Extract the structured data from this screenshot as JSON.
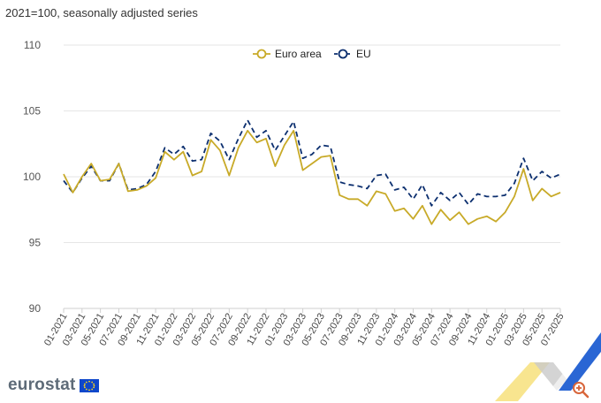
{
  "subtitle": "2021=100, seasonally adjusted series",
  "brand": {
    "logo_text": "eurostat"
  },
  "colors": {
    "euro_area": "#c8aa28",
    "eu": "#0c2f6f",
    "grid": "#e6e6e6"
  },
  "chart_data": {
    "type": "line",
    "title": "",
    "subtitle": "2021=100, seasonally adjusted series",
    "xlabel": "",
    "ylabel": "",
    "ylim": [
      90,
      110
    ],
    "y_ticks": [
      90,
      95,
      100,
      105,
      110
    ],
    "grid": true,
    "legend_position": "top-center",
    "x_tick_labels": [
      "01-2021",
      "03-2021",
      "05-2021",
      "07-2021",
      "09-2021",
      "11-2021",
      "01-2022",
      "03-2022",
      "05-2022",
      "07-2022",
      "09-2022",
      "11-2022",
      "01-2023",
      "03-2023",
      "05-2023",
      "07-2023",
      "09-2023",
      "11-2023",
      "01-2024",
      "03-2024",
      "05-2024",
      "07-2024",
      "09-2024",
      "11-2024",
      "01-2025",
      "03-2025",
      "05-2025",
      "07-2025"
    ],
    "series": [
      {
        "name": "Euro area",
        "style": "solid",
        "values": [
          100.2,
          98.8,
          100.0,
          101.0,
          99.7,
          99.8,
          101.0,
          98.9,
          99.0,
          99.3,
          99.9,
          101.9,
          101.3,
          101.9,
          100.1,
          100.4,
          102.8,
          102.0,
          100.1,
          102.2,
          103.5,
          102.6,
          102.9,
          100.8,
          102.4,
          103.5,
          100.5,
          101.0,
          101.5,
          101.6,
          98.6,
          98.3,
          98.3,
          97.8,
          98.9,
          98.7,
          97.4,
          97.6,
          96.8,
          97.8,
          96.4,
          97.5,
          96.7,
          97.3,
          96.4,
          96.8,
          97.0,
          96.6,
          97.3,
          98.5,
          100.6,
          98.2,
          99.1,
          98.5,
          98.8
        ]
      },
      {
        "name": "EU",
        "style": "dashed",
        "values": [
          99.7,
          98.8,
          99.9,
          100.8,
          99.7,
          99.7,
          101.0,
          99.0,
          99.1,
          99.4,
          100.4,
          102.2,
          101.7,
          102.3,
          101.2,
          101.3,
          103.3,
          102.7,
          101.3,
          102.9,
          104.3,
          103.0,
          103.5,
          102.0,
          103.1,
          104.2,
          101.4,
          101.7,
          102.4,
          102.3,
          99.6,
          99.4,
          99.3,
          99.1,
          100.1,
          100.2,
          99.0,
          99.2,
          98.3,
          99.4,
          97.8,
          98.8,
          98.2,
          98.8,
          97.9,
          98.7,
          98.5,
          98.5,
          98.6,
          99.5,
          101.4,
          99.7,
          100.4,
          99.9,
          100.2
        ]
      }
    ]
  }
}
